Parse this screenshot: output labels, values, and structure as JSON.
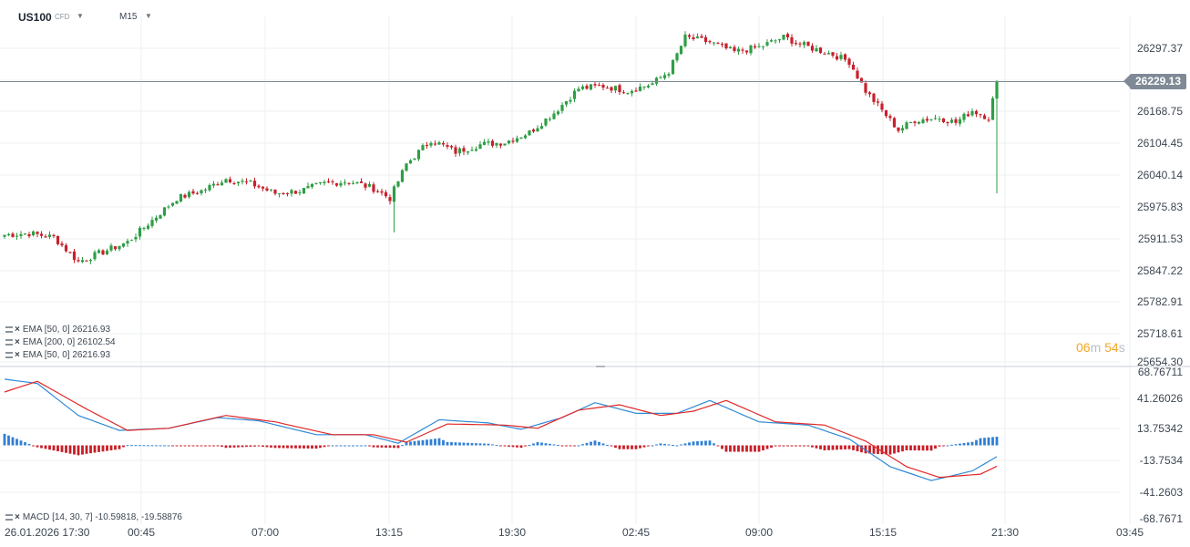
{
  "header": {
    "symbol": "US100",
    "symbol_type": "CFD",
    "timeframe": "M15"
  },
  "price_axis": [
    "26297.37",
    "26168.75",
    "26104.45",
    "26040.14",
    "25975.83",
    "25911.53",
    "25847.22",
    "25782.91",
    "25718.61",
    "25654.30"
  ],
  "current_price": "26229.13",
  "countdown": {
    "minutes": "06",
    "m": "m",
    "seconds": "54",
    "s": "s"
  },
  "legends": [
    {
      "text": "EMA  [50,  0]  26216.93"
    },
    {
      "text": "EMA  [200,  0]  26102.54"
    },
    {
      "text": "EMA  [50,  0]  26216.93"
    }
  ],
  "macd_axis": [
    "68.76711",
    "41.26026",
    "13.75342",
    "-13.7534",
    "-41.2603",
    "-68.7671"
  ],
  "macd_legend": "MACD  [14,  30,  7]  -10.59818,  -19.58876",
  "time_axis": [
    "26.01.2026  17:30",
    "00:45",
    "07:00",
    "13:15",
    "19:30",
    "02:45",
    "09:00",
    "15:15",
    "21:30",
    "03:45"
  ],
  "colors": {
    "up": "#2e9e45",
    "down": "#c8202c",
    "macd_line": "#2f8ad6",
    "signal_line": "#e02828",
    "hist_up": "#2f7fd6",
    "hist_down": "#c81e28",
    "grid": "#eef0f2"
  },
  "chart_data": {
    "type": "candlestick",
    "price_range": [
      25654.3,
      26350
    ],
    "time_labels": [
      "26.01.2026 17:30",
      "00:45",
      "07:00",
      "13:15",
      "19:30",
      "02:45",
      "09:00",
      "15:15",
      "21:30",
      "03:45"
    ],
    "close_anchors": [
      {
        "t": 0,
        "price": 25915
      },
      {
        "t": 6,
        "price": 25918
      },
      {
        "t": 12,
        "price": 25910
      },
      {
        "t": 18,
        "price": 25860
      },
      {
        "t": 24,
        "price": 25880
      },
      {
        "t": 30,
        "price": 25900
      },
      {
        "t": 36,
        "price": 25945
      },
      {
        "t": 42,
        "price": 25990
      },
      {
        "t": 48,
        "price": 26005
      },
      {
        "t": 54,
        "price": 26030
      },
      {
        "t": 60,
        "price": 26020
      },
      {
        "t": 66,
        "price": 26000
      },
      {
        "t": 72,
        "price": 26005
      },
      {
        "t": 78,
        "price": 26020
      },
      {
        "t": 84,
        "price": 26025
      },
      {
        "t": 90,
        "price": 26010
      },
      {
        "t": 94,
        "price": 25990
      },
      {
        "t": 98,
        "price": 26060
      },
      {
        "t": 104,
        "price": 26110
      },
      {
        "t": 110,
        "price": 26085
      },
      {
        "t": 116,
        "price": 26100
      },
      {
        "t": 122,
        "price": 26105
      },
      {
        "t": 128,
        "price": 26125
      },
      {
        "t": 134,
        "price": 26165
      },
      {
        "t": 140,
        "price": 26215
      },
      {
        "t": 146,
        "price": 26220
      },
      {
        "t": 152,
        "price": 26210
      },
      {
        "t": 158,
        "price": 26225
      },
      {
        "t": 162,
        "price": 26250
      },
      {
        "t": 166,
        "price": 26320
      },
      {
        "t": 172,
        "price": 26310
      },
      {
        "t": 178,
        "price": 26290
      },
      {
        "t": 184,
        "price": 26300
      },
      {
        "t": 190,
        "price": 26320
      },
      {
        "t": 196,
        "price": 26300
      },
      {
        "t": 202,
        "price": 26285
      },
      {
        "t": 206,
        "price": 26270
      },
      {
        "t": 210,
        "price": 26210
      },
      {
        "t": 214,
        "price": 26170
      },
      {
        "t": 218,
        "price": 26130
      },
      {
        "t": 222,
        "price": 26150
      },
      {
        "t": 228,
        "price": 26155
      },
      {
        "t": 232,
        "price": 26145
      },
      {
        "t": 236,
        "price": 26170
      },
      {
        "t": 240,
        "price": 26155
      },
      {
        "t": 242,
        "price": 26229
      }
    ],
    "macd": {
      "params": [
        14,
        30,
        7
      ],
      "macd_value": -10.59818,
      "signal_value": -19.58876,
      "range": [
        -68.7671,
        68.76711
      ],
      "macd_anchors": [
        {
          "t": 0,
          "v": 62
        },
        {
          "t": 8,
          "v": 58
        },
        {
          "t": 18,
          "v": 28
        },
        {
          "t": 28,
          "v": 14
        },
        {
          "t": 40,
          "v": 16
        },
        {
          "t": 52,
          "v": 26
        },
        {
          "t": 62,
          "v": 23
        },
        {
          "t": 76,
          "v": 10
        },
        {
          "t": 88,
          "v": 10
        },
        {
          "t": 96,
          "v": 2
        },
        {
          "t": 106,
          "v": 24
        },
        {
          "t": 118,
          "v": 21
        },
        {
          "t": 126,
          "v": 15
        },
        {
          "t": 136,
          "v": 26
        },
        {
          "t": 144,
          "v": 40
        },
        {
          "t": 154,
          "v": 30
        },
        {
          "t": 164,
          "v": 30
        },
        {
          "t": 172,
          "v": 42
        },
        {
          "t": 184,
          "v": 22
        },
        {
          "t": 196,
          "v": 19
        },
        {
          "t": 206,
          "v": 6
        },
        {
          "t": 216,
          "v": -20
        },
        {
          "t": 226,
          "v": -33
        },
        {
          "t": 236,
          "v": -24
        },
        {
          "t": 242,
          "v": -10.6
        }
      ],
      "signal_anchors": [
        {
          "t": 0,
          "v": 50
        },
        {
          "t": 8,
          "v": 60
        },
        {
          "t": 20,
          "v": 34
        },
        {
          "t": 30,
          "v": 14
        },
        {
          "t": 40,
          "v": 16
        },
        {
          "t": 54,
          "v": 28
        },
        {
          "t": 66,
          "v": 22
        },
        {
          "t": 80,
          "v": 10
        },
        {
          "t": 90,
          "v": 10
        },
        {
          "t": 98,
          "v": 3
        },
        {
          "t": 108,
          "v": 20
        },
        {
          "t": 122,
          "v": 19
        },
        {
          "t": 130,
          "v": 16
        },
        {
          "t": 140,
          "v": 33
        },
        {
          "t": 150,
          "v": 38
        },
        {
          "t": 160,
          "v": 28
        },
        {
          "t": 168,
          "v": 32
        },
        {
          "t": 176,
          "v": 42
        },
        {
          "t": 188,
          "v": 22
        },
        {
          "t": 200,
          "v": 19
        },
        {
          "t": 210,
          "v": 4
        },
        {
          "t": 220,
          "v": -20
        },
        {
          "t": 228,
          "v": -30
        },
        {
          "t": 238,
          "v": -27
        },
        {
          "t": 242,
          "v": -19.6
        }
      ]
    }
  }
}
